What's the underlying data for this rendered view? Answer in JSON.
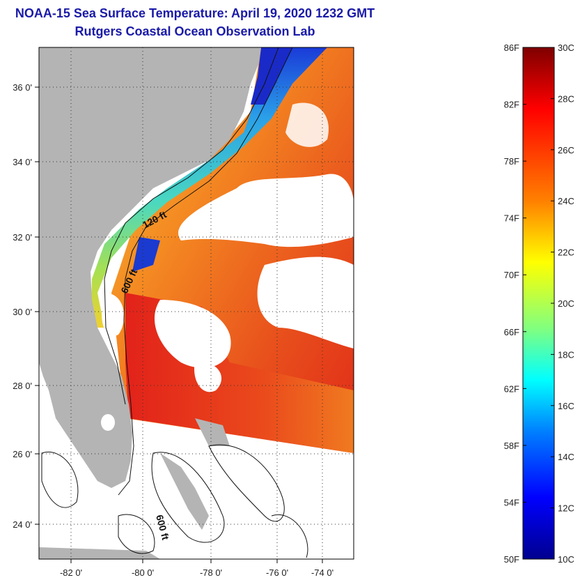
{
  "title": {
    "line1": "NOAA-15 Sea Surface Temperature:  April 19, 2020 1232 GMT",
    "line2": "Rutgers Coastal Ocean Observation Lab"
  },
  "map": {
    "lat_labels": [
      "36 0'",
      "34 0'",
      "32 0'",
      "30 0'",
      "28 0'",
      "26 0'",
      "24 0'"
    ],
    "lon_labels": [
      "-82 0'",
      "-80 0'",
      "-78 0'",
      "-76 0'",
      "-74 0'"
    ],
    "contour_labels": [
      "120 ft",
      "600 ft",
      "600 ft"
    ],
    "colors": {
      "land": "#b4b4b4",
      "cloud": "#ffffff",
      "warm": "#e8281a",
      "mid": "#f0a020",
      "cool": "#2ad0e0",
      "cold": "#1020c8"
    }
  },
  "colorbar": {
    "fahrenheit_labels": [
      "86F",
      "82F",
      "78F",
      "74F",
      "70F",
      "66F",
      "62F",
      "58F",
      "54F",
      "50F"
    ],
    "celsius_labels": [
      "30C",
      "28C",
      "26C",
      "24C",
      "22C",
      "20C",
      "18C",
      "16C",
      "14C",
      "12C",
      "10C"
    ],
    "range_f": [
      50,
      86
    ],
    "range_c": [
      10,
      30
    ],
    "stops": [
      "#7f0000",
      "#ff0000",
      "#ff8000",
      "#ffff00",
      "#80ff80",
      "#00ffff",
      "#0080ff",
      "#0000ff",
      "#00008f"
    ]
  }
}
